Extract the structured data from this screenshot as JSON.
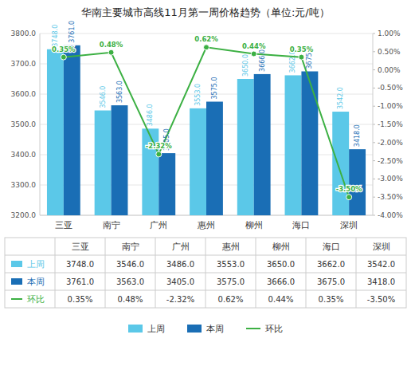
{
  "chart_data": {
    "type": "bar",
    "title": "华南主要城市高线11月第一周价格趋势（单位:元/吨）",
    "categories": [
      "三亚",
      "南宁",
      "广州",
      "惠州",
      "柳州",
      "海口",
      "深圳"
    ],
    "series": [
      {
        "name": "上周",
        "color": "#5bc8e8",
        "values": [
          3748.0,
          3546.0,
          3486.0,
          3553.0,
          3650.0,
          3662.0,
          3542.0
        ],
        "value_labels": [
          "3748.0",
          "3546.0",
          "3486.0",
          "3553.0",
          "3650.0",
          "3662.0",
          "3542.0"
        ]
      },
      {
        "name": "本周",
        "color": "#1a6eb5",
        "values": [
          3761.0,
          3563.0,
          3405.0,
          3575.0,
          3666.0,
          3675.0,
          3418.0
        ],
        "value_labels": [
          "3761.0",
          "3563.0",
          "3405.0",
          "3575.0",
          "3666.0",
          "3675.0",
          "3418.0"
        ]
      },
      {
        "name": "环比",
        "type": "line",
        "axis": "y2",
        "color": "#3cb043",
        "marker": "circle",
        "values": [
          0.35,
          0.48,
          -2.32,
          0.62,
          0.44,
          0.35,
          -3.5
        ],
        "value_labels": [
          "0.35%",
          "0.48%",
          "-2.32%",
          "0.62%",
          "0.44%",
          "0.35%",
          "-3.50%"
        ]
      }
    ],
    "ylim": [
      3200.0,
      3800.0
    ],
    "yticks": [
      {
        "value": 3200.0,
        "label": "3200.0"
      },
      {
        "value": 3300.0,
        "label": "3300.0"
      },
      {
        "value": 3400.0,
        "label": "3400.0"
      },
      {
        "value": 3500.0,
        "label": "3500.0"
      },
      {
        "value": 3600.0,
        "label": "3600.0"
      },
      {
        "value": 3700.0,
        "label": "3700.0"
      },
      {
        "value": 3800.0,
        "label": "3800.0"
      }
    ],
    "y2lim": [
      -4.0,
      1.0
    ],
    "y2ticks": [
      {
        "value": -4.0,
        "label": "-4.00%"
      },
      {
        "value": -3.5,
        "label": "-3.50%"
      },
      {
        "value": -3.0,
        "label": "-3.00%"
      },
      {
        "value": -2.5,
        "label": "-2.50%"
      },
      {
        "value": -2.0,
        "label": "-2.00%"
      },
      {
        "value": -1.5,
        "label": "-1.50%"
      },
      {
        "value": -1.0,
        "label": "-1.00%"
      },
      {
        "value": -0.5,
        "label": "-0.50%"
      },
      {
        "value": 0.0,
        "label": "0.00%"
      },
      {
        "value": 0.5,
        "label": "0.50%"
      },
      {
        "value": 1.0,
        "label": "1.00%"
      }
    ],
    "grid": true,
    "legend": "bottom",
    "data_labels": true
  }
}
